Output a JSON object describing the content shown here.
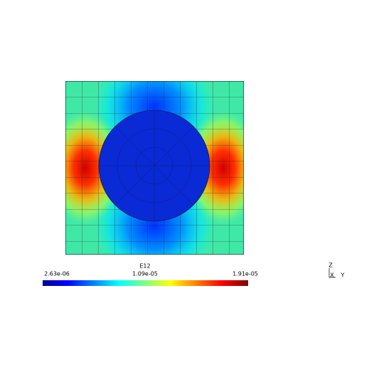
{
  "legend": {
    "title": "E12",
    "labels": [
      "2.63e-06",
      "1.09e-05",
      "1.91e-05"
    ]
  },
  "triad": {
    "z": "Z",
    "x": "X",
    "y": "Y"
  }
}
